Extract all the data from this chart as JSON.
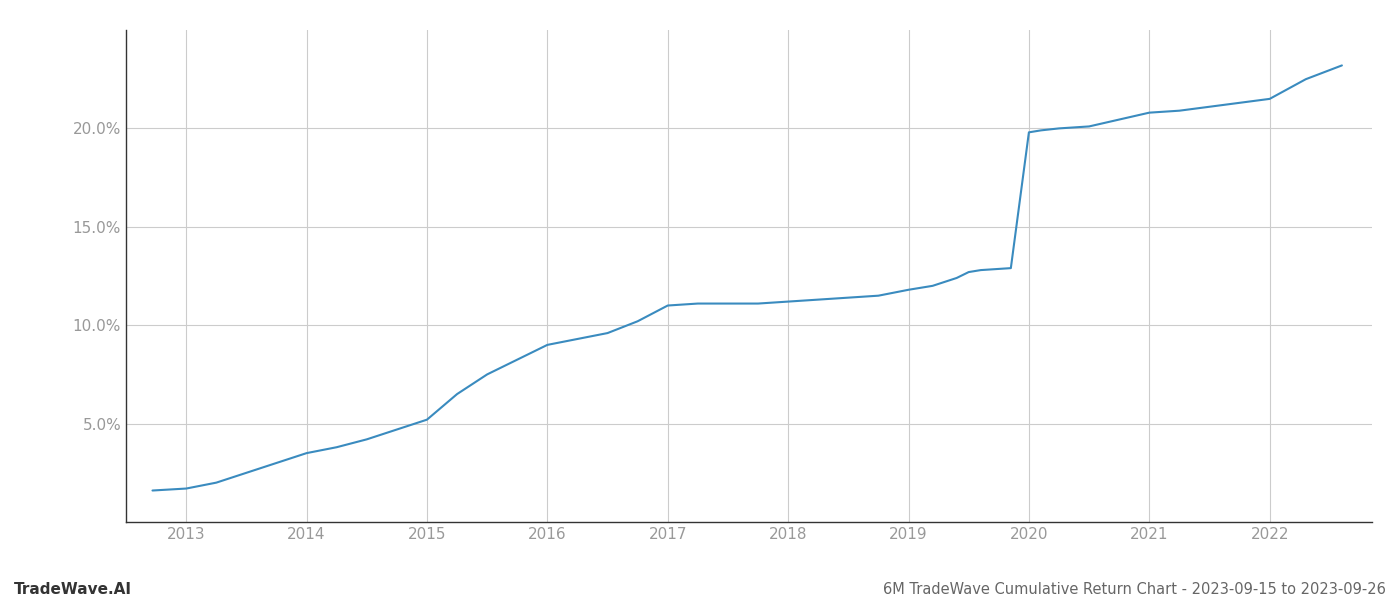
{
  "title": "6M TradeWave Cumulative Return Chart - 2023-09-15 to 2023-09-26",
  "watermark": "TradeWave.AI",
  "line_color": "#3a8bbf",
  "background_color": "#ffffff",
  "grid_color": "#cccccc",
  "x_years": [
    2012.72,
    2013.0,
    2013.25,
    2013.5,
    2013.75,
    2014.0,
    2014.25,
    2014.5,
    2014.75,
    2015.0,
    2015.25,
    2015.5,
    2016.0,
    2016.25,
    2016.5,
    2016.75,
    2017.0,
    2017.25,
    2017.5,
    2017.75,
    2018.0,
    2018.25,
    2018.5,
    2018.75,
    2019.0,
    2019.2,
    2019.4,
    2019.5,
    2019.6,
    2019.85,
    2020.0,
    2020.1,
    2020.25,
    2020.5,
    2021.0,
    2021.25,
    2021.5,
    2022.0,
    2022.3,
    2022.6
  ],
  "y_values": [
    1.6,
    1.7,
    2.0,
    2.5,
    3.0,
    3.5,
    3.8,
    4.2,
    4.7,
    5.2,
    6.5,
    7.5,
    9.0,
    9.3,
    9.6,
    10.2,
    11.0,
    11.1,
    11.1,
    11.1,
    11.2,
    11.3,
    11.4,
    11.5,
    11.8,
    12.0,
    12.4,
    12.7,
    12.8,
    12.9,
    19.8,
    19.9,
    20.0,
    20.1,
    20.8,
    20.9,
    21.1,
    21.5,
    22.5,
    23.2
  ],
  "ylim": [
    0,
    25
  ],
  "xlim": [
    2012.5,
    2022.85
  ],
  "ytick_values": [
    5.0,
    10.0,
    15.0,
    20.0
  ],
  "ytick_labels": [
    "5.0%",
    "10.0%",
    "15.0%",
    "20.0%"
  ],
  "xtick_values": [
    2013,
    2014,
    2015,
    2016,
    2017,
    2018,
    2019,
    2020,
    2021,
    2022
  ],
  "tick_color": "#999999",
  "spine_color": "#333333",
  "title_fontsize": 10.5,
  "watermark_fontsize": 11,
  "tick_fontsize": 11,
  "line_width": 1.5
}
